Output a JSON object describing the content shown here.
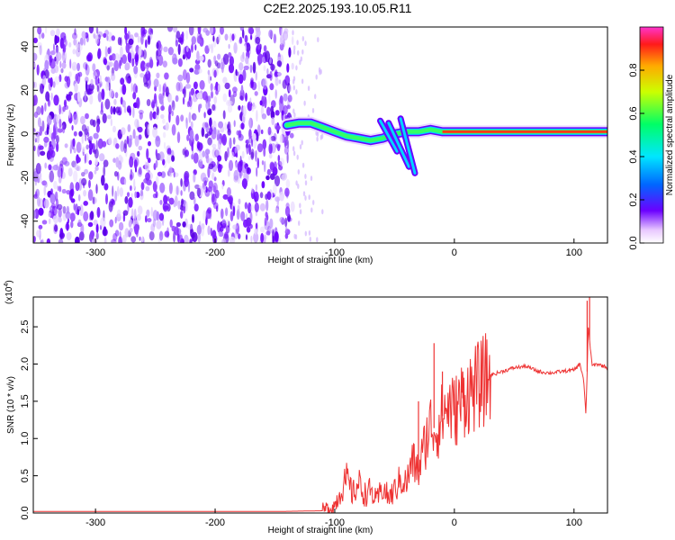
{
  "title": "C2E2.2025.193.10.05.R11",
  "chart_data": [
    {
      "type": "heatmap",
      "xlabel": "Height of straight line (km)",
      "ylabel": "Frequency (Hz)",
      "xlim": [
        -352,
        128
      ],
      "ylim": [
        -50,
        49
      ],
      "xticks": [
        -300,
        -200,
        -100,
        0,
        100
      ],
      "xtick_labels": [
        "-300",
        "-200",
        "-100",
        "0",
        "100"
      ],
      "yticks": [
        -40,
        -20,
        0,
        20,
        40
      ],
      "ytick_labels": [
        "-40",
        "-20",
        "0",
        "20",
        "40"
      ],
      "colorbar": {
        "label": "Normalized spectral amplitude",
        "range": [
          0,
          1
        ],
        "ticks": [
          0.0,
          0.2,
          0.4,
          0.6,
          0.8
        ],
        "tick_labels": [
          "0.0",
          "0.2",
          "0.4",
          "0.6",
          "0.8"
        ]
      },
      "noise_region_x": [
        -352,
        -135
      ],
      "ridge": {
        "x": [
          -140,
          -130,
          -120,
          -110,
          -100,
          -90,
          -80,
          -70,
          -60,
          -50,
          -40,
          -30,
          -20,
          -10,
          0,
          20,
          40,
          60,
          80,
          100,
          110,
          128
        ],
        "freq": [
          4,
          5,
          5,
          3,
          1,
          -1,
          -2,
          -3,
          -2,
          0,
          1,
          1,
          2,
          1,
          1,
          1,
          1,
          1,
          1,
          1,
          1,
          1
        ]
      },
      "secondary_tracks": [
        {
          "x": [
            -62,
            -48
          ],
          "freq": [
            6,
            -8
          ]
        },
        {
          "x": [
            -55,
            -38
          ],
          "freq": [
            5,
            -15
          ]
        },
        {
          "x": [
            -45,
            -33
          ],
          "freq": [
            7,
            -18
          ]
        }
      ]
    },
    {
      "type": "line",
      "xlabel": "Height of straight line (km)",
      "ylabel": "SNR (10 * v/v)",
      "multiplier_label": "(x10",
      "multiplier_exponent": "4",
      "xlim": [
        -352,
        128
      ],
      "ylim": [
        0,
        2.9
      ],
      "xticks": [
        -300,
        -200,
        -100,
        0,
        100
      ],
      "xtick_labels": [
        "-300",
        "-200",
        "-100",
        "0",
        "100"
      ],
      "yticks": [
        0.0,
        0.5,
        1.0,
        1.5,
        2.0,
        2.5
      ],
      "ytick_labels": [
        "0.0",
        "0.5",
        "1.0",
        "1.5",
        "2.0",
        "2.5"
      ],
      "series": [
        {
          "color": "#ee3333",
          "x": [
            -352,
            -150,
            -110,
            -100,
            -95,
            -90,
            -85,
            -80,
            -75,
            -70,
            -65,
            -60,
            -55,
            -50,
            -45,
            -40,
            -35,
            -30,
            -25,
            -20,
            -15,
            -10,
            -5,
            0,
            5,
            10,
            20,
            30,
            40,
            50,
            60,
            70,
            80,
            90,
            100,
            105,
            108,
            110,
            112,
            115,
            120,
            128
          ],
          "y": [
            0.02,
            0.02,
            0.03,
            0.1,
            0.3,
            0.45,
            0.25,
            0.4,
            0.25,
            0.3,
            0.15,
            0.35,
            0.2,
            0.3,
            0.45,
            0.4,
            0.7,
            0.55,
            0.9,
            1.2,
            1.1,
            1.3,
            1.45,
            1.35,
            1.5,
            1.6,
            1.7,
            1.85,
            1.9,
            1.95,
            1.97,
            1.9,
            1.88,
            1.9,
            1.92,
            2.0,
            1.8,
            1.3,
            2.5,
            1.98,
            2.0,
            1.95
          ]
        }
      ],
      "spikes": [
        {
          "x": -17,
          "y": 2.28
        },
        {
          "x": -30,
          "y": 1.5
        },
        {
          "x": -10,
          "y": 1.9
        },
        {
          "x": 7,
          "y": 1.9
        },
        {
          "x": 111,
          "y": 2.85
        },
        {
          "x": 113,
          "y": 2.9
        }
      ]
    }
  ]
}
